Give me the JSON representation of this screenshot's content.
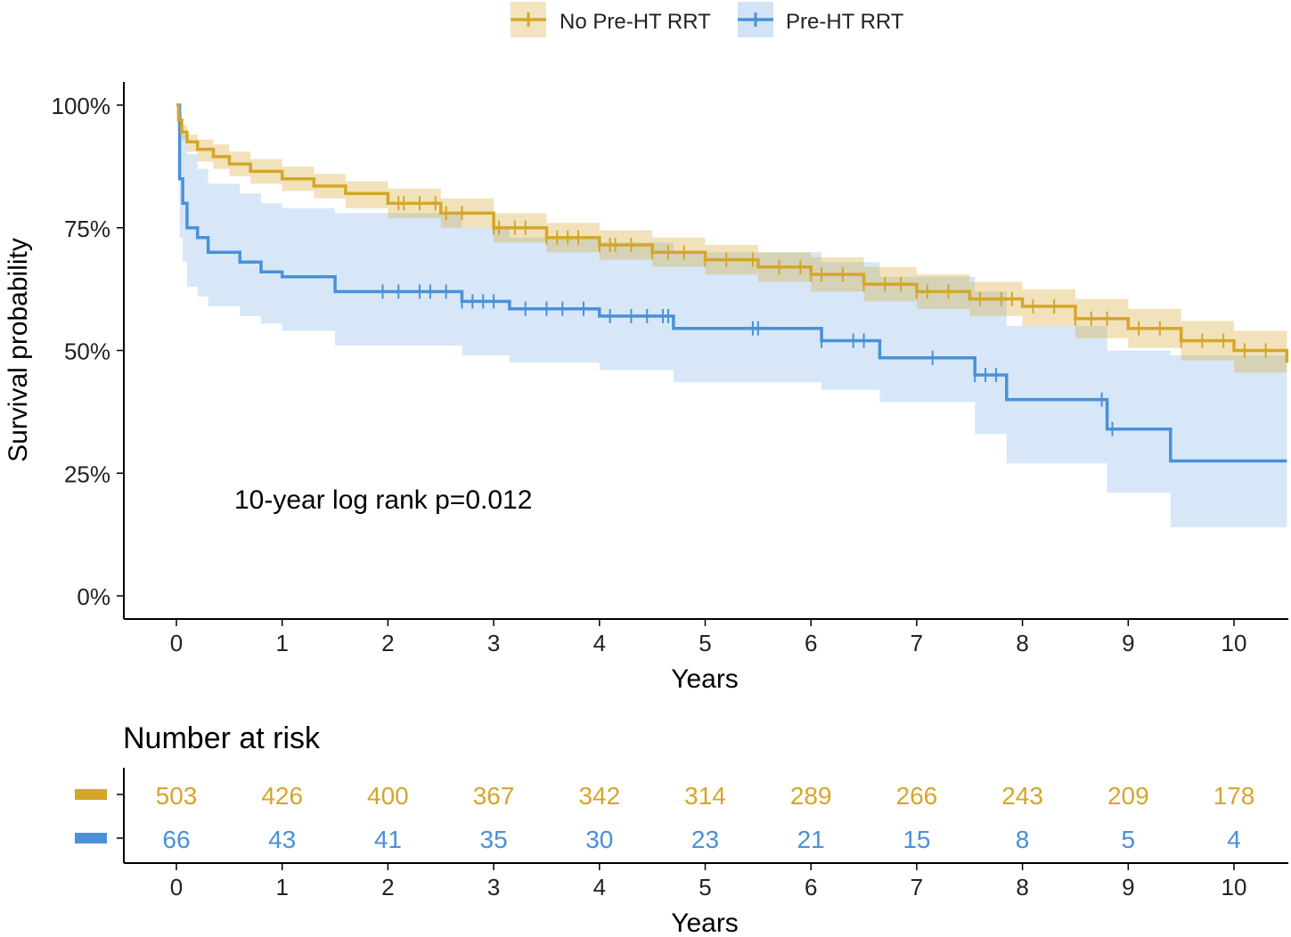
{
  "legend": {
    "items": [
      {
        "label": "No Pre-HT RRT",
        "color": "#D4A62A"
      },
      {
        "label": "Pre-HT RRT",
        "color": "#4A90D9"
      }
    ],
    "position": "top"
  },
  "survival_plot": {
    "ylabel": "Survival probability",
    "xlabel": "Years",
    "annotation": "10-year log rank p=0.012",
    "y_tick_labels": [
      "0%",
      "25%",
      "50%",
      "75%",
      "100%"
    ],
    "x_tick_labels": [
      "0",
      "1",
      "2",
      "3",
      "4",
      "5",
      "6",
      "7",
      "8",
      "9",
      "10"
    ]
  },
  "risk_table": {
    "title": "Number at risk",
    "xlabel": "Years",
    "x_tick_labels": [
      "0",
      "1",
      "2",
      "3",
      "4",
      "5",
      "6",
      "7",
      "8",
      "9",
      "10"
    ],
    "rows": [
      {
        "color": "#D4A62A",
        "values": [
          "503",
          "426",
          "400",
          "367",
          "342",
          "314",
          "289",
          "266",
          "243",
          "209",
          "178"
        ]
      },
      {
        "color": "#4A90D9",
        "values": [
          "66",
          "43",
          "41",
          "35",
          "30",
          "23",
          "21",
          "15",
          "8",
          "5",
          "4"
        ]
      }
    ]
  },
  "chart_data": {
    "type": "line",
    "subtype": "kaplan-meier",
    "x_unit": "years",
    "xlim": [
      -0.5,
      10.5
    ],
    "ylim": [
      0,
      1
    ],
    "grid": false,
    "legend_position": "top",
    "series": [
      {
        "name": "No Pre-HT RRT",
        "color": "#D4A62A",
        "x": [
          0,
          0.02,
          0.05,
          0.1,
          0.2,
          0.35,
          0.5,
          0.7,
          1.0,
          1.3,
          1.6,
          2.0,
          2.5,
          3.0,
          3.5,
          4.0,
          4.5,
          5.0,
          5.5,
          6.0,
          6.5,
          7.0,
          7.5,
          8.0,
          8.5,
          9.0,
          9.5,
          10.0,
          10.5
        ],
        "y": [
          1.0,
          0.97,
          0.945,
          0.925,
          0.91,
          0.895,
          0.88,
          0.865,
          0.85,
          0.835,
          0.82,
          0.8,
          0.78,
          0.75,
          0.73,
          0.715,
          0.7,
          0.685,
          0.67,
          0.655,
          0.635,
          0.62,
          0.605,
          0.59,
          0.565,
          0.545,
          0.52,
          0.5,
          0.475
        ],
        "ci_lower": [
          1.0,
          0.955,
          0.93,
          0.905,
          0.885,
          0.87,
          0.855,
          0.84,
          0.825,
          0.81,
          0.79,
          0.77,
          0.75,
          0.72,
          0.7,
          0.685,
          0.67,
          0.655,
          0.64,
          0.62,
          0.6,
          0.585,
          0.57,
          0.55,
          0.525,
          0.505,
          0.48,
          0.455,
          0.43
        ],
        "ci_upper": [
          1.0,
          0.985,
          0.96,
          0.94,
          0.93,
          0.92,
          0.905,
          0.89,
          0.875,
          0.86,
          0.845,
          0.83,
          0.81,
          0.78,
          0.76,
          0.745,
          0.73,
          0.715,
          0.7,
          0.69,
          0.67,
          0.655,
          0.64,
          0.625,
          0.605,
          0.585,
          0.56,
          0.54,
          0.52
        ],
        "censor_x": [
          2.1,
          2.15,
          2.3,
          2.45,
          2.55,
          2.7,
          3.0,
          3.05,
          3.2,
          3.3,
          3.5,
          3.6,
          3.7,
          3.8,
          4.0,
          4.1,
          4.15,
          4.3,
          4.5,
          4.65,
          4.8,
          5.0,
          5.2,
          5.45,
          5.7,
          5.9,
          6.0,
          6.1,
          6.3,
          6.5,
          6.7,
          6.85,
          7.0,
          7.1,
          7.3,
          7.6,
          7.8,
          7.9,
          8.1,
          8.3,
          8.5,
          8.65,
          8.8,
          9.1,
          9.3,
          9.5,
          9.7,
          9.9,
          10.1,
          10.3
        ]
      },
      {
        "name": "Pre-HT RRT",
        "color": "#4A90D9",
        "x": [
          0,
          0.03,
          0.06,
          0.1,
          0.2,
          0.3,
          0.6,
          0.8,
          1.0,
          1.5,
          2.7,
          3.15,
          4.0,
          4.7,
          6.1,
          6.65,
          7.55,
          7.85,
          8.8,
          9.4,
          10.5
        ],
        "y": [
          1.0,
          0.85,
          0.8,
          0.75,
          0.73,
          0.7,
          0.68,
          0.66,
          0.65,
          0.62,
          0.6,
          0.585,
          0.57,
          0.545,
          0.52,
          0.485,
          0.45,
          0.4,
          0.34,
          0.275,
          0.275
        ],
        "ci_lower": [
          1.0,
          0.73,
          0.68,
          0.63,
          0.61,
          0.59,
          0.57,
          0.555,
          0.54,
          0.51,
          0.49,
          0.475,
          0.46,
          0.435,
          0.42,
          0.395,
          0.33,
          0.27,
          0.21,
          0.14,
          0.14
        ],
        "ci_upper": [
          1.0,
          0.97,
          0.94,
          0.9,
          0.87,
          0.84,
          0.82,
          0.8,
          0.79,
          0.78,
          0.75,
          0.73,
          0.72,
          0.7,
          0.68,
          0.65,
          0.62,
          0.55,
          0.5,
          0.49,
          0.49
        ],
        "censor_x": [
          1.95,
          2.1,
          2.3,
          2.4,
          2.55,
          2.7,
          2.8,
          2.9,
          3.0,
          3.3,
          3.5,
          3.65,
          3.85,
          4.1,
          4.3,
          4.45,
          4.6,
          4.65,
          5.45,
          5.5,
          6.1,
          6.4,
          6.5,
          7.15,
          7.55,
          7.65,
          7.75,
          8.75,
          8.85
        ]
      }
    ],
    "risk_table_x": [
      0,
      1,
      2,
      3,
      4,
      5,
      6,
      7,
      8,
      9,
      10
    ]
  }
}
